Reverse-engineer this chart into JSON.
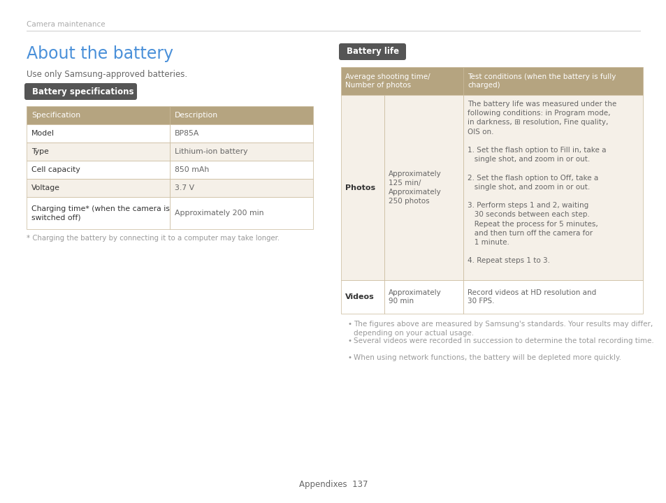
{
  "bg_color": "#ffffff",
  "header_text": "Camera maintenance",
  "header_color": "#aaaaaa",
  "header_line_color": "#cccccc",
  "title_text": "About the battery",
  "title_color": "#4a90d9",
  "subtitle_text": "Use only Samsung-approved batteries.",
  "badge1_text": "Battery specifications",
  "badge2_text": "Battery life",
  "badge_bg": "#555555",
  "badge_text_color": "#ffffff",
  "spec_header_bg": "#b5a480",
  "spec_header_text_color": "#ffffff",
  "spec_row_bg_even": "#f5f0e8",
  "spec_row_bg_odd": "#ffffff",
  "spec_rows": [
    {
      "spec": "Specification",
      "desc": "Description",
      "header": true
    },
    {
      "spec": "Model",
      "desc": "BP85A",
      "header": false
    },
    {
      "spec": "Type",
      "desc": "Lithium-ion battery",
      "header": false
    },
    {
      "spec": "Cell capacity",
      "desc": "850 mAh",
      "header": false
    },
    {
      "spec": "Voltage",
      "desc": "3.7 V",
      "header": false
    },
    {
      "spec": "Charging time* (when the camera is\nswitched off)",
      "desc": "Approximately 200 min",
      "header": false
    }
  ],
  "footnote_text": "* Charging the battery by connecting it to a computer may take longer.",
  "life_header_col1": "Average shooting time/\nNumber of photos",
  "life_header_col2": "Test conditions (when the battery is fully\ncharged)",
  "life_photos_avg": "Approximately\n125 min/\nApproximately\n250 photos",
  "life_test_conditions": "The battery life was measured under the\nfollowing conditions: in Program mode,\nin darkness, ⊞ resolution, Fine quality,\nOIS on.\n\n1. Set the flash option to Fill in, take a\n   single shot, and zoom in or out.\n\n2. Set the flash option to Off, take a\n   single shot, and zoom in or out.\n\n3. Perform steps 1 and 2, waiting\n   30 seconds between each step.\n   Repeat the process for 5 minutes,\n   and then turn off the camera for\n   1 minute.\n\n4. Repeat steps 1 to 3.",
  "life_videos_avg": "Approximately\n90 min",
  "life_videos_test": "Record videos at HD resolution and\n30 FPS.",
  "bullet1": "The figures above are measured by Samsung's standards. Your results may differ, depending on your actual usage.",
  "bullet2": "Several videos were recorded in succession to determine the total recording time.",
  "bullet3": "When using network functions, the battery will be depleted more quickly.",
  "footer_text": "Appendixes  137",
  "text_dark": "#333333",
  "text_mid": "#666666",
  "text_light": "#999999",
  "border_color": "#c8b898"
}
